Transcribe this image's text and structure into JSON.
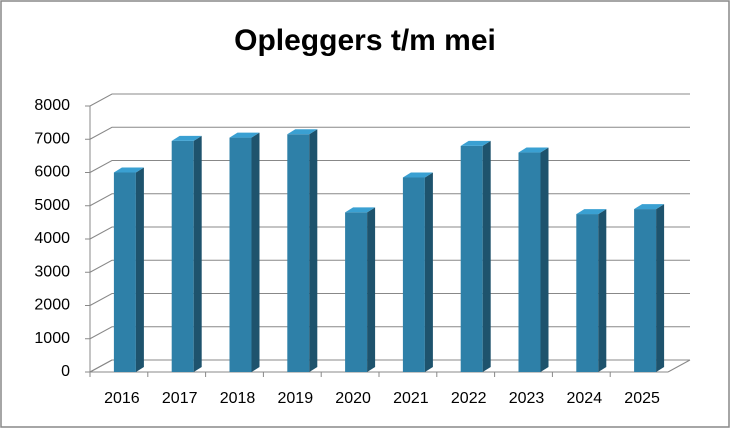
{
  "chart_data": {
    "type": "bar3d",
    "title": "Opleggers t/m mei",
    "categories": [
      "2016",
      "2017",
      "2018",
      "2019",
      "2020",
      "2021",
      "2022",
      "2023",
      "2024",
      "2025"
    ],
    "values": [
      6000,
      6950,
      7050,
      7150,
      4800,
      5850,
      6800,
      6600,
      4750,
      4900
    ],
    "color": "#2e80a8",
    "ylim": [
      0,
      8000
    ],
    "yticks": [
      0,
      1000,
      2000,
      3000,
      4000,
      5000,
      6000,
      7000,
      8000
    ],
    "grid": true
  }
}
